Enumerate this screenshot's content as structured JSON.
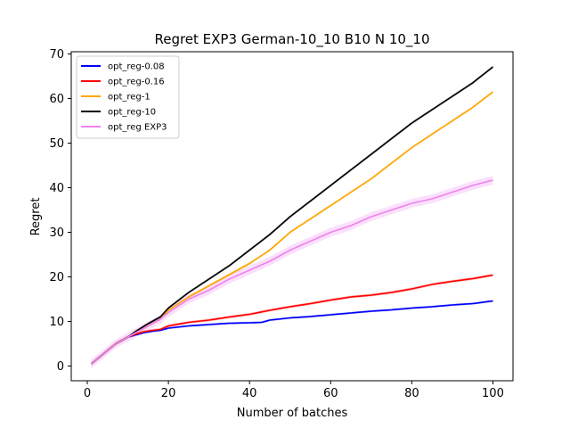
{
  "chart_data": {
    "type": "line",
    "title": "Regret EXP3 German-10_10 B10 N 10_10",
    "xlabel": "Number of batches",
    "ylabel": "Regret",
    "xlim": [
      -3.95,
      104.95
    ],
    "ylim": [
      -3.3,
      70.5
    ],
    "x_ticks": [
      0,
      20,
      40,
      60,
      80,
      100
    ],
    "y_ticks": [
      0,
      10,
      20,
      30,
      40,
      50,
      60,
      70
    ],
    "grid": false,
    "legend_position": "top-left",
    "series": [
      {
        "name": "opt_reg-0.08",
        "color": "#0000ff",
        "points": [
          [
            1,
            0.5
          ],
          [
            3,
            2.0
          ],
          [
            5,
            3.5
          ],
          [
            7,
            5.0
          ],
          [
            10,
            6.5
          ],
          [
            12,
            7.0
          ],
          [
            14,
            7.5
          ],
          [
            16,
            7.8
          ],
          [
            18,
            8.0
          ],
          [
            20,
            8.5
          ],
          [
            25,
            9.0
          ],
          [
            30,
            9.3
          ],
          [
            35,
            9.6
          ],
          [
            40,
            9.7
          ],
          [
            43,
            9.8
          ],
          [
            45,
            10.3
          ],
          [
            50,
            10.8
          ],
          [
            55,
            11.1
          ],
          [
            60,
            11.5
          ],
          [
            65,
            11.9
          ],
          [
            70,
            12.3
          ],
          [
            75,
            12.6
          ],
          [
            80,
            13.0
          ],
          [
            85,
            13.3
          ],
          [
            90,
            13.7
          ],
          [
            95,
            14.0
          ],
          [
            100,
            14.6
          ]
        ],
        "band": 0.25
      },
      {
        "name": "opt_reg-0.16",
        "color": "#ff0000",
        "points": [
          [
            1,
            0.5
          ],
          [
            3,
            2.0
          ],
          [
            5,
            3.5
          ],
          [
            7,
            5.0
          ],
          [
            10,
            6.5
          ],
          [
            12,
            7.2
          ],
          [
            14,
            7.7
          ],
          [
            16,
            8.0
          ],
          [
            18,
            8.2
          ],
          [
            20,
            9.0
          ],
          [
            25,
            9.8
          ],
          [
            30,
            10.3
          ],
          [
            35,
            11.0
          ],
          [
            40,
            11.6
          ],
          [
            45,
            12.5
          ],
          [
            50,
            13.3
          ],
          [
            55,
            14.0
          ],
          [
            60,
            14.8
          ],
          [
            65,
            15.5
          ],
          [
            70,
            15.9
          ],
          [
            75,
            16.5
          ],
          [
            80,
            17.3
          ],
          [
            85,
            18.3
          ],
          [
            90,
            19.0
          ],
          [
            95,
            19.6
          ],
          [
            100,
            20.4
          ]
        ],
        "band": 0.3
      },
      {
        "name": "opt_reg-1",
        "color": "#ffa500",
        "points": [
          [
            1,
            0.5
          ],
          [
            3,
            2.0
          ],
          [
            5,
            3.5
          ],
          [
            7,
            5.0
          ],
          [
            10,
            6.5
          ],
          [
            12,
            7.5
          ],
          [
            15,
            9.0
          ],
          [
            18,
            10.5
          ],
          [
            20,
            12.5
          ],
          [
            25,
            15.5
          ],
          [
            30,
            18.0
          ],
          [
            35,
            20.5
          ],
          [
            40,
            23.0
          ],
          [
            45,
            26.0
          ],
          [
            50,
            30.0
          ],
          [
            55,
            33.0
          ],
          [
            60,
            36.0
          ],
          [
            65,
            39.0
          ],
          [
            70,
            42.0
          ],
          [
            75,
            45.5
          ],
          [
            80,
            49.0
          ],
          [
            85,
            52.0
          ],
          [
            90,
            55.0
          ],
          [
            95,
            58.0
          ],
          [
            100,
            61.5
          ]
        ],
        "band": 0.3
      },
      {
        "name": "opt_reg-10",
        "color": "#000000",
        "points": [
          [
            1,
            0.5
          ],
          [
            3,
            2.0
          ],
          [
            5,
            3.5
          ],
          [
            7,
            5.0
          ],
          [
            10,
            6.5
          ],
          [
            12,
            7.8
          ],
          [
            15,
            9.5
          ],
          [
            18,
            11.0
          ],
          [
            20,
            13.0
          ],
          [
            25,
            16.5
          ],
          [
            30,
            19.5
          ],
          [
            35,
            22.5
          ],
          [
            40,
            26.0
          ],
          [
            45,
            29.5
          ],
          [
            50,
            33.5
          ],
          [
            55,
            37.0
          ],
          [
            60,
            40.5
          ],
          [
            65,
            44.0
          ],
          [
            70,
            47.5
          ],
          [
            75,
            51.0
          ],
          [
            80,
            54.5
          ],
          [
            85,
            57.5
          ],
          [
            90,
            60.5
          ],
          [
            95,
            63.5
          ],
          [
            100,
            67.1
          ]
        ],
        "band": 0.3
      },
      {
        "name": "opt_reg EXP3",
        "color": "#ee82ee",
        "points": [
          [
            1,
            0.5
          ],
          [
            3,
            2.0
          ],
          [
            5,
            3.5
          ],
          [
            7,
            5.0
          ],
          [
            10,
            6.5
          ],
          [
            12,
            7.5
          ],
          [
            15,
            9.0
          ],
          [
            18,
            10.5
          ],
          [
            20,
            12.0
          ],
          [
            25,
            15.0
          ],
          [
            30,
            17.0
          ],
          [
            35,
            19.5
          ],
          [
            40,
            21.5
          ],
          [
            45,
            23.5
          ],
          [
            50,
            26.0
          ],
          [
            55,
            28.0
          ],
          [
            60,
            30.0
          ],
          [
            65,
            31.5
          ],
          [
            70,
            33.5
          ],
          [
            75,
            35.0
          ],
          [
            80,
            36.5
          ],
          [
            85,
            37.5
          ],
          [
            90,
            39.0
          ],
          [
            95,
            40.5
          ],
          [
            100,
            41.7
          ]
        ],
        "band": 1.0
      }
    ]
  }
}
